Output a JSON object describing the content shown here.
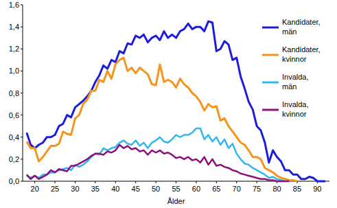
{
  "chart_data": {
    "type": "line",
    "x_label": "Ålder",
    "x": [
      18,
      19,
      20,
      21,
      22,
      23,
      24,
      25,
      26,
      27,
      28,
      29,
      30,
      31,
      32,
      33,
      34,
      35,
      36,
      37,
      38,
      39,
      40,
      41,
      42,
      43,
      44,
      45,
      46,
      47,
      48,
      49,
      50,
      51,
      52,
      53,
      54,
      55,
      56,
      57,
      58,
      59,
      60,
      61,
      62,
      63,
      64,
      65,
      66,
      67,
      68,
      69,
      70,
      71,
      72,
      73,
      74,
      75,
      76,
      77,
      78,
      79,
      80,
      81,
      82,
      83,
      84,
      85,
      86,
      87,
      88,
      89,
      90,
      91,
      92
    ],
    "xlim": [
      17,
      93
    ],
    "xticks": [
      20,
      25,
      30,
      35,
      40,
      45,
      50,
      55,
      60,
      65,
      70,
      75,
      80,
      85,
      90
    ],
    "ylim": [
      0,
      1.6
    ],
    "yticks": [
      {
        "value": 0,
        "label": "0,0"
      },
      {
        "value": 0.2,
        "label": "0,2"
      },
      {
        "value": 0.4,
        "label": "0,4"
      },
      {
        "value": 0.6,
        "label": "0,6"
      },
      {
        "value": 0.8,
        "label": "0,8"
      },
      {
        "value": 1.0,
        "label": "1,0"
      },
      {
        "value": 1.2,
        "label": "1,2"
      },
      {
        "value": 1.4,
        "label": "1,4"
      },
      {
        "value": 1.6,
        "label": "1,6"
      }
    ],
    "grid": false,
    "legend": "right",
    "series": [
      {
        "name": "Kandidater, män",
        "color": "#1c1cdc",
        "values": [
          0.44,
          0.33,
          0.3,
          0.33,
          0.35,
          0.4,
          0.4,
          0.42,
          0.5,
          0.52,
          0.6,
          0.58,
          0.67,
          0.7,
          0.73,
          0.77,
          0.82,
          0.9,
          0.96,
          1.05,
          1.02,
          1.1,
          1.08,
          1.18,
          1.16,
          1.25,
          1.24,
          1.32,
          1.3,
          1.33,
          1.26,
          1.3,
          1.32,
          1.28,
          1.36,
          1.3,
          1.33,
          1.3,
          1.36,
          1.38,
          1.43,
          1.38,
          1.4,
          1.4,
          1.36,
          1.45,
          1.44,
          1.18,
          1.2,
          1.27,
          1.24,
          1.1,
          1.12,
          0.95,
          0.84,
          0.72,
          0.65,
          0.5,
          0.46,
          0.35,
          0.17,
          0.28,
          0.22,
          0.18,
          0.1,
          0.1,
          0.06,
          0.06,
          0.02,
          0.02,
          0.04,
          0.03,
          0.0,
          0.0,
          0.0
        ]
      },
      {
        "name": "Kandidater, kvinnor",
        "color": "#f7941d",
        "values": [
          0.36,
          0.3,
          0.3,
          0.18,
          0.22,
          0.27,
          0.32,
          0.32,
          0.34,
          0.45,
          0.43,
          0.42,
          0.57,
          0.6,
          0.7,
          0.74,
          0.82,
          0.82,
          0.92,
          0.9,
          1.0,
          0.93,
          1.06,
          1.1,
          1.12,
          1.0,
          1.03,
          0.98,
          1.03,
          1.0,
          0.97,
          0.88,
          0.87,
          1.06,
          0.9,
          0.92,
          0.9,
          0.85,
          0.93,
          0.88,
          0.85,
          0.8,
          0.77,
          0.72,
          0.64,
          0.7,
          0.67,
          0.68,
          0.55,
          0.57,
          0.5,
          0.45,
          0.4,
          0.35,
          0.33,
          0.28,
          0.22,
          0.22,
          0.2,
          0.12,
          0.1,
          0.08,
          0.05,
          0.03,
          0.02,
          0.01,
          0.01,
          0.0,
          null,
          null,
          null,
          null,
          null,
          null,
          null
        ]
      },
      {
        "name": "Invalda, män",
        "color": "#33b5ee",
        "values": [
          0.05,
          0.03,
          0.05,
          0.03,
          0.06,
          0.06,
          0.08,
          0.08,
          0.1,
          0.11,
          0.12,
          0.1,
          0.15,
          0.13,
          0.15,
          0.18,
          0.22,
          0.25,
          0.24,
          0.3,
          0.28,
          0.3,
          0.31,
          0.35,
          0.37,
          0.34,
          0.33,
          0.37,
          0.32,
          0.35,
          0.3,
          0.35,
          0.37,
          0.4,
          0.36,
          0.35,
          0.38,
          0.42,
          0.4,
          0.42,
          0.42,
          0.44,
          0.48,
          0.48,
          0.38,
          0.42,
          0.36,
          0.4,
          0.33,
          0.38,
          0.3,
          0.34,
          0.25,
          0.2,
          0.16,
          0.15,
          0.12,
          0.1,
          0.08,
          0.06,
          0.03,
          0.04,
          0.02,
          0.01,
          0.0,
          null,
          null,
          null,
          null,
          null,
          null,
          null,
          null,
          null,
          null
        ]
      },
      {
        "name": "Invalda, kvinnor",
        "color": "#8c0f7c",
        "values": [
          0.06,
          0.02,
          0.05,
          0.02,
          0.04,
          0.06,
          0.1,
          0.08,
          0.11,
          0.1,
          0.09,
          0.14,
          0.14,
          0.16,
          0.18,
          0.2,
          0.23,
          0.25,
          0.25,
          0.24,
          0.27,
          0.26,
          0.28,
          0.33,
          0.3,
          0.32,
          0.29,
          0.3,
          0.27,
          0.28,
          0.24,
          0.28,
          0.26,
          0.28,
          0.25,
          0.26,
          0.24,
          0.21,
          0.22,
          0.2,
          0.22,
          0.19,
          0.2,
          0.17,
          0.22,
          0.15,
          0.2,
          0.14,
          0.15,
          0.13,
          0.12,
          0.1,
          0.09,
          0.07,
          0.06,
          0.05,
          0.04,
          0.03,
          0.02,
          0.02,
          0.01,
          0.01,
          0.0,
          0.0,
          0.0,
          0.0,
          null,
          null,
          null,
          null,
          null,
          null,
          null,
          null,
          null
        ]
      }
    ]
  }
}
